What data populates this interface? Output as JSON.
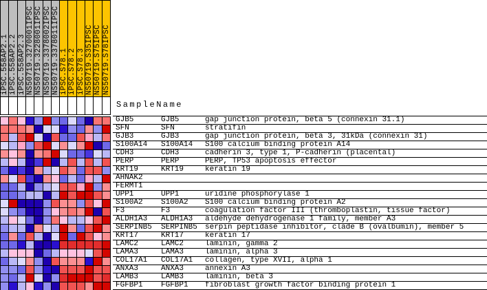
{
  "chart_data": {
    "type": "heatmap",
    "sample_label": "SampleName",
    "legend_position": "none",
    "grid": true,
    "group_colors": {
      "gray": "#bebebe",
      "gold": "#fdc400"
    },
    "columns": [
      {
        "label": "iPSC.558AP2.1",
        "group": "gray"
      },
      {
        "label": "iPSC.558AP2.2",
        "group": "gray"
      },
      {
        "label": "iPSC.558AP2.3",
        "group": "gray"
      },
      {
        "label": "NS50719.3270001IPSC",
        "group": "gray"
      },
      {
        "label": "NS50719.3228001IPSC",
        "group": "gray"
      },
      {
        "label": "NS50719.3378002IPSC",
        "group": "gray"
      },
      {
        "label": "NS50719.3378011IPSC",
        "group": "gray"
      },
      {
        "label": "iPSC.S78.1",
        "group": "gold"
      },
      {
        "label": "iPSC.S78.2",
        "group": "gold"
      },
      {
        "label": "iPSC.S78.3",
        "group": "gold"
      },
      {
        "label": "NS50719.S35IPSC",
        "group": "gold"
      },
      {
        "label": "NS50719.S75IPSC",
        "group": "gold"
      },
      {
        "label": "NS50719.S78IPSC",
        "group": "gold"
      }
    ],
    "rows": [
      {
        "symbol": "GJB5",
        "symbol2": "GJB5",
        "description": "gap junction protein, beta 5 (connexin 31.1)"
      },
      {
        "symbol": "SFN",
        "symbol2": "SFN",
        "description": "stratifin"
      },
      {
        "symbol": "GJB3",
        "symbol2": "GJB3",
        "description": "gap junction protein, beta 3, 31kDa (connexin 31)"
      },
      {
        "symbol": "S100A14",
        "symbol2": "S100A14",
        "description": "S100 calcium binding protein A14"
      },
      {
        "symbol": "CDH3",
        "symbol2": "CDH3",
        "description": "cadherin 3, type 1, P-cadherin (placental)"
      },
      {
        "symbol": "PERP",
        "symbol2": "PERP",
        "description": "PERP, TP53 apoptosis effector"
      },
      {
        "symbol": "KRT19",
        "symbol2": "KRT19",
        "description": "keratin 19"
      },
      {
        "symbol": "AHNAK2",
        "symbol2": "",
        "description": ""
      },
      {
        "symbol": "FERMT1",
        "symbol2": "",
        "description": ""
      },
      {
        "symbol": "UPP1",
        "symbol2": "UPP1",
        "description": "uridine phosphorylase 1"
      },
      {
        "symbol": "S100A2",
        "symbol2": "S100A2",
        "description": "S100 calcium binding protein A2"
      },
      {
        "symbol": "F3",
        "symbol2": "F3",
        "description": "coagulation factor III (thromboplastin, tissue factor)"
      },
      {
        "symbol": "ALDH1A3",
        "symbol2": "ALDH1A3",
        "description": "aldehyde dehydrogenase 1 family, member A3"
      },
      {
        "symbol": "SERPINB5",
        "symbol2": "SERPINB5",
        "description": "serpin peptidase inhibitor, clade B (ovalbumin), member 5"
      },
      {
        "symbol": "KRT17",
        "symbol2": "KRT17",
        "description": "keratin 17"
      },
      {
        "symbol": "LAMC2",
        "symbol2": "LAMC2",
        "description": "laminin, gamma 2"
      },
      {
        "symbol": "LAMA3",
        "symbol2": "LAMA3",
        "description": "laminin, alpha 3"
      },
      {
        "symbol": "COL17A1",
        "symbol2": "COL17A1",
        "description": "collagen, type XVII, alpha 1"
      },
      {
        "symbol": "ANXA3",
        "symbol2": "ANXA3",
        "description": "annexin A3"
      },
      {
        "symbol": "LAMB3",
        "symbol2": "LAMB3",
        "description": "laminin, beta 3"
      },
      {
        "symbol": "FGFBP1",
        "symbol2": "FGFBP1",
        "description": "fibroblast growth factor binding protein 1"
      }
    ],
    "palette": {
      "a": "#1e00ae",
      "b": "#2a10cf",
      "c": "#4935de",
      "d": "#6f68e8",
      "e": "#918ef0",
      "f": "#bab8f6",
      "g": "#dcdafb",
      "i": "#ffc2e0",
      "j": "#ffa6c6",
      "k": "#fb8f92",
      "l": "#f97473",
      "m": "#f15352",
      "n": "#e32d2d",
      "o": "#d40500"
    },
    "cells": [
      "ilibeoedgdall",
      "lllkaggbedkeo",
      "lfmogamddmjfl",
      "gfjemogkgkoad",
      "kikaklogddcgf",
      "fifacoafmfmfm",
      "dbcakfgmkdmme",
      "kgmcakidfdjfo",
      "ddfaefgmmjoek",
      "ddeffafomoomk",
      "goaaaemkkemio",
      "gedaaeiklkoam",
      "figdaeliffimo",
      "effakgfokdmok",
      "dkdmfagodomik",
      "ddbfaabnnnnno",
      "fiiiadfiiigmo",
      "dfgkeamkkkbok",
      "eedmebammmomm",
      "edfogaenooomn",
      "ebfibeammmkoo"
    ]
  }
}
